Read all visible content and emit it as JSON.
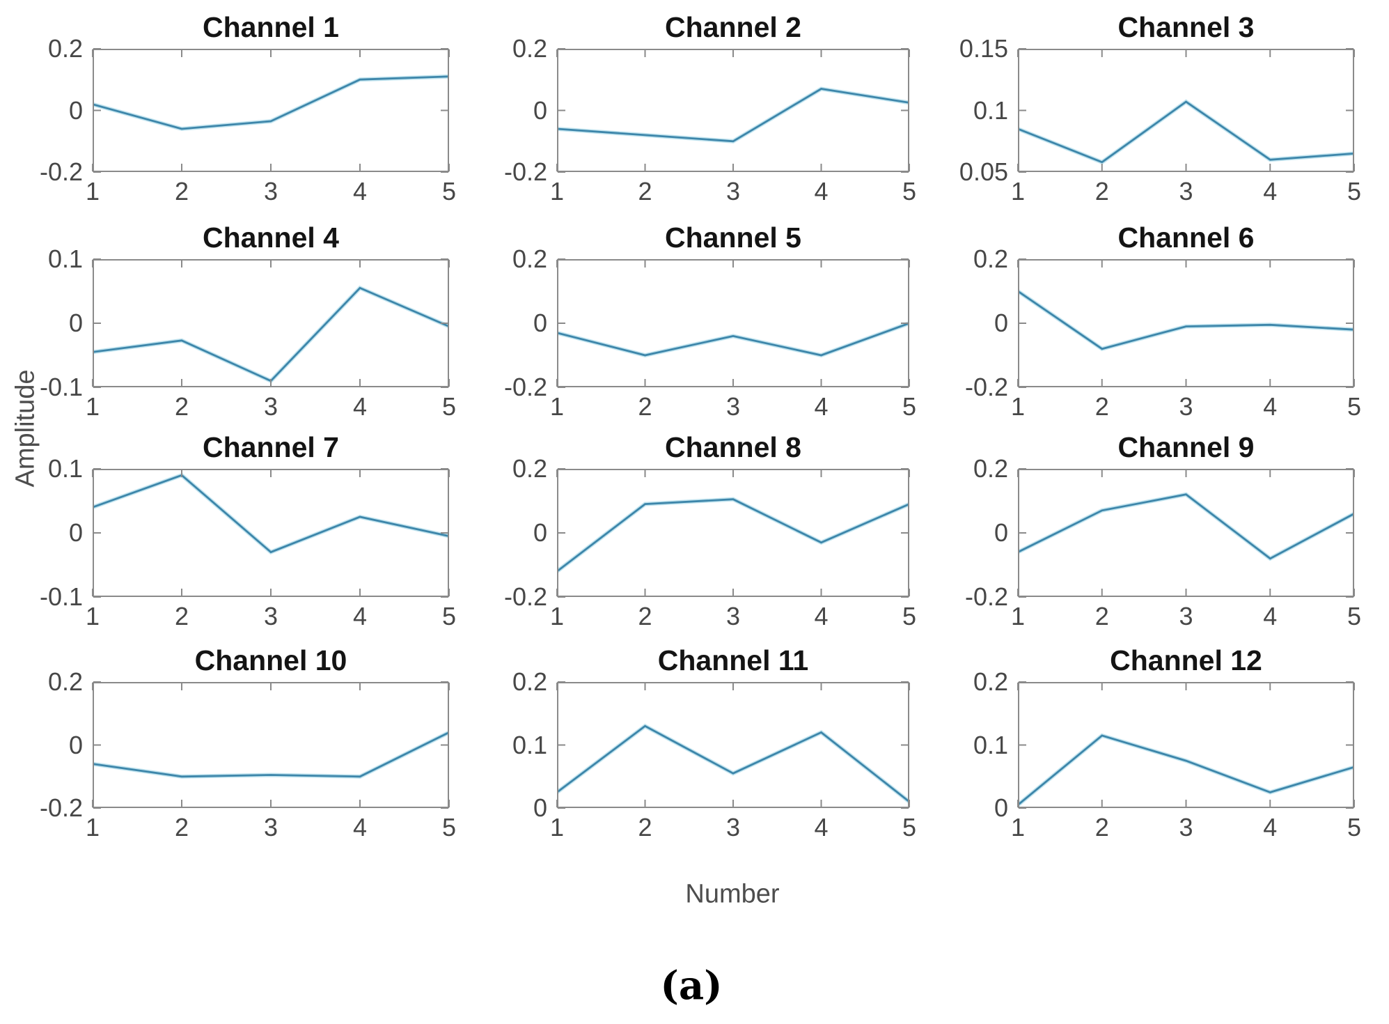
{
  "figure": {
    "ylabel": "Amplitude",
    "xlabel": "Number",
    "caption": "(a)",
    "line_color": "#3d86aa",
    "line_halo_color": "#c2e4ef",
    "axis_color": "#8a8a8a",
    "tick_label_color": "#474747",
    "title_color": "#141414"
  },
  "chart_data": [
    {
      "type": "line",
      "title": "Channel 1",
      "x": [
        1,
        2,
        3,
        4,
        5
      ],
      "values": [
        0.02,
        -0.06,
        -0.035,
        0.1,
        0.11
      ],
      "ylim": [
        -0.2,
        0.2
      ],
      "yticks": [
        -0.2,
        0,
        0.2
      ],
      "xticks": [
        1,
        2,
        3,
        4,
        5
      ]
    },
    {
      "type": "line",
      "title": "Channel 2",
      "x": [
        1,
        2,
        3,
        4,
        5
      ],
      "values": [
        -0.06,
        -0.08,
        -0.1,
        0.07,
        0.025
      ],
      "ylim": [
        -0.2,
        0.2
      ],
      "yticks": [
        -0.2,
        0,
        0.2
      ],
      "xticks": [
        1,
        2,
        3,
        4,
        5
      ]
    },
    {
      "type": "line",
      "title": "Channel 3",
      "x": [
        1,
        2,
        3,
        4,
        5
      ],
      "values": [
        0.085,
        0.058,
        0.107,
        0.06,
        0.065
      ],
      "ylim": [
        0.05,
        0.15
      ],
      "yticks": [
        0.05,
        0.1,
        0.15
      ],
      "xticks": [
        1,
        2,
        3,
        4,
        5
      ]
    },
    {
      "type": "line",
      "title": "Channel 4",
      "x": [
        1,
        2,
        3,
        4,
        5
      ],
      "values": [
        -0.045,
        -0.027,
        -0.09,
        0.055,
        -0.005
      ],
      "ylim": [
        -0.1,
        0.1
      ],
      "yticks": [
        -0.1,
        0,
        0.1
      ],
      "xticks": [
        1,
        2,
        3,
        4,
        5
      ]
    },
    {
      "type": "line",
      "title": "Channel 5",
      "x": [
        1,
        2,
        3,
        4,
        5
      ],
      "values": [
        -0.03,
        -0.1,
        -0.04,
        -0.1,
        0.0
      ],
      "ylim": [
        -0.2,
        0.2
      ],
      "yticks": [
        -0.2,
        0,
        0.2
      ],
      "xticks": [
        1,
        2,
        3,
        4,
        5
      ]
    },
    {
      "type": "line",
      "title": "Channel 6",
      "x": [
        1,
        2,
        3,
        4,
        5
      ],
      "values": [
        0.1,
        -0.08,
        -0.01,
        -0.005,
        -0.02
      ],
      "ylim": [
        -0.2,
        0.2
      ],
      "yticks": [
        -0.2,
        0,
        0.2
      ],
      "xticks": [
        1,
        2,
        3,
        4,
        5
      ]
    },
    {
      "type": "line",
      "title": "Channel 7",
      "x": [
        1,
        2,
        3,
        4,
        5
      ],
      "values": [
        0.04,
        0.09,
        -0.03,
        0.025,
        -0.005
      ],
      "ylim": [
        -0.1,
        0.1
      ],
      "yticks": [
        -0.1,
        0,
        0.1
      ],
      "xticks": [
        1,
        2,
        3,
        4,
        5
      ]
    },
    {
      "type": "line",
      "title": "Channel 8",
      "x": [
        1,
        2,
        3,
        4,
        5
      ],
      "values": [
        -0.12,
        0.09,
        0.105,
        -0.03,
        0.09
      ],
      "ylim": [
        -0.2,
        0.2
      ],
      "yticks": [
        -0.2,
        0,
        0.2
      ],
      "xticks": [
        1,
        2,
        3,
        4,
        5
      ]
    },
    {
      "type": "line",
      "title": "Channel 9",
      "x": [
        1,
        2,
        3,
        4,
        5
      ],
      "values": [
        -0.06,
        0.07,
        0.12,
        -0.08,
        0.06
      ],
      "ylim": [
        -0.2,
        0.2
      ],
      "yticks": [
        -0.2,
        0,
        0.2
      ],
      "xticks": [
        1,
        2,
        3,
        4,
        5
      ]
    },
    {
      "type": "line",
      "title": "Channel 10",
      "x": [
        1,
        2,
        3,
        4,
        5
      ],
      "values": [
        -0.06,
        -0.1,
        -0.095,
        -0.1,
        0.04
      ],
      "ylim": [
        -0.2,
        0.2
      ],
      "yticks": [
        -0.2,
        0,
        0.2
      ],
      "xticks": [
        1,
        2,
        3,
        4,
        5
      ]
    },
    {
      "type": "line",
      "title": "Channel 11",
      "x": [
        1,
        2,
        3,
        4,
        5
      ],
      "values": [
        0.025,
        0.13,
        0.055,
        0.12,
        0.01
      ],
      "ylim": [
        0,
        0.2
      ],
      "yticks": [
        0,
        0.1,
        0.2
      ],
      "xticks": [
        1,
        2,
        3,
        4,
        5
      ]
    },
    {
      "type": "line",
      "title": "Channel 12",
      "x": [
        1,
        2,
        3,
        4,
        5
      ],
      "values": [
        0.005,
        0.115,
        0.075,
        0.025,
        0.065
      ],
      "ylim": [
        0,
        0.2
      ],
      "yticks": [
        0,
        0.1,
        0.2
      ],
      "xticks": [
        1,
        2,
        3,
        4,
        5
      ]
    }
  ]
}
